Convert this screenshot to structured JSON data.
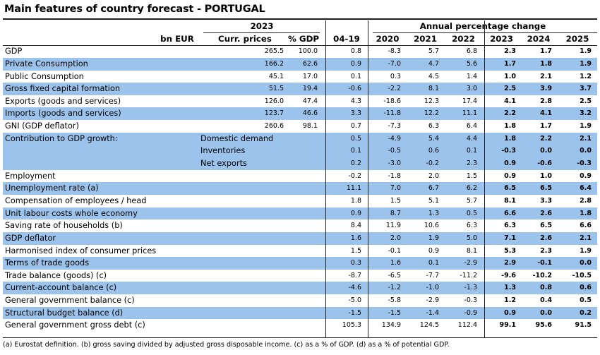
{
  "title": "Main features of country forecast - PORTUGAL",
  "header": {
    "year": "2023",
    "annual_change": "Annual percentage change",
    "columns": [
      "bn EUR",
      "Curr. prices",
      "% GDP",
      "04-19",
      "2020",
      "2021",
      "2022",
      "2023",
      "2024",
      "2025"
    ]
  },
  "rows": [
    {
      "label": "GDP",
      "values": [
        "265.5",
        "100.0",
        "0.8",
        "-8.3",
        "5.7",
        "6.8",
        "2.3",
        "1.7",
        "1.9"
      ]
    },
    {
      "label": "Private Consumption",
      "values": [
        "166.2",
        "62.6",
        "0.9",
        "-7.0",
        "4.7",
        "5.6",
        "1.7",
        "1.8",
        "1.9"
      ]
    },
    {
      "label": "Public Consumption",
      "values": [
        "45.1",
        "17.0",
        "0.1",
        "0.3",
        "4.5",
        "1.4",
        "1.0",
        "2.1",
        "1.2"
      ]
    },
    {
      "label": "Gross fixed capital formation",
      "values": [
        "51.5",
        "19.4",
        "-0.6",
        "-2.2",
        "8.1",
        "3.0",
        "2.5",
        "3.9",
        "3.7"
      ]
    },
    {
      "label": "Exports (goods and services)",
      "values": [
        "126.0",
        "47.4",
        "4.3",
        "-18.6",
        "12.3",
        "17.4",
        "4.1",
        "2.8",
        "2.5"
      ]
    },
    {
      "label": "Imports (goods and services)",
      "values": [
        "123.7",
        "46.6",
        "3.3",
        "-11.8",
        "12.2",
        "11.1",
        "2.2",
        "4.1",
        "3.2"
      ]
    },
    {
      "label": "GNI (GDP deflator)",
      "values": [
        "260.6",
        "98.1",
        "0.7",
        "-7.3",
        "6.3",
        "6.4",
        "1.8",
        "1.7",
        "1.9"
      ]
    },
    {
      "label": "Contribution to GDP growth:",
      "sub": "Domestic demand",
      "values": [
        "",
        "",
        "0.5",
        "-4.9",
        "5.4",
        "4.4",
        "1.8",
        "2.2",
        "2.1"
      ]
    },
    {
      "label": "",
      "sub": "Inventories",
      "values": [
        "",
        "",
        "0.1",
        "-0.5",
        "0.6",
        "0.1",
        "-0.3",
        "0.0",
        "0.0"
      ]
    },
    {
      "label": "",
      "sub": "Net exports",
      "values": [
        "",
        "",
        "0.2",
        "-3.0",
        "-0.2",
        "2.3",
        "0.9",
        "-0.6",
        "-0.3"
      ]
    },
    {
      "label": "Employment",
      "values": [
        "",
        "",
        "-0.2",
        "-1.8",
        "2.0",
        "1.5",
        "0.9",
        "1.0",
        "0.9"
      ]
    },
    {
      "label": "Unemployment rate (a)",
      "values": [
        "",
        "",
        "11.1",
        "7.0",
        "6.7",
        "6.2",
        "6.5",
        "6.5",
        "6.4"
      ]
    },
    {
      "label": "Compensation of employees / head",
      "values": [
        "",
        "",
        "1.8",
        "1.5",
        "5.1",
        "5.7",
        "8.1",
        "3.3",
        "2.8"
      ]
    },
    {
      "label": "Unit labour costs whole economy",
      "values": [
        "",
        "",
        "0.9",
        "8.7",
        "1.3",
        "0.5",
        "6.6",
        "2.6",
        "1.8"
      ]
    },
    {
      "label": "Saving rate of households (b)",
      "values": [
        "",
        "",
        "8.4",
        "11.9",
        "10.6",
        "6.3",
        "6.3",
        "6.5",
        "6.6"
      ]
    },
    {
      "label": "GDP deflator",
      "values": [
        "",
        "",
        "1.6",
        "2.0",
        "1.9",
        "5.0",
        "7.1",
        "2.6",
        "2.1"
      ]
    },
    {
      "label": "Harmonised index of consumer prices",
      "values": [
        "",
        "",
        "1.5",
        "-0.1",
        "0.9",
        "8.1",
        "5.3",
        "2.3",
        "1.9"
      ]
    },
    {
      "label": "Terms of trade goods",
      "values": [
        "",
        "",
        "0.3",
        "1.6",
        "0.1",
        "-2.9",
        "2.9",
        "-0.1",
        "0.0"
      ]
    },
    {
      "label": "Trade balance (goods) (c)",
      "values": [
        "",
        "",
        "-8.7",
        "-6.5",
        "-7.7",
        "-11.2",
        "-9.6",
        "-10.2",
        "-10.5"
      ]
    },
    {
      "label": "Current-account balance (c)",
      "values": [
        "",
        "",
        "-4.6",
        "-1.2",
        "-1.0",
        "-1.3",
        "1.3",
        "0.8",
        "0.6"
      ]
    },
    {
      "label": "General government balance (c)",
      "values": [
        "",
        "",
        "-5.0",
        "-5.8",
        "-2.9",
        "-0.3",
        "1.2",
        "0.4",
        "0.5"
      ]
    },
    {
      "label": "Structural budget balance (d)",
      "values": [
        "",
        "",
        "-1.5",
        "-1.5",
        "-1.4",
        "-0.9",
        "0.9",
        "0.0",
        "0.2"
      ]
    },
    {
      "label": "General government gross debt (c)",
      "values": [
        "",
        "",
        "105.3",
        "134.9",
        "124.5",
        "112.4",
        "99.1",
        "95.6",
        "91.5"
      ]
    }
  ],
  "footnote": "(a) Eurostat definition. (b) gross saving divided by adjusted gross disposable income. (c) as a % of GDP. (d) as a % of potential GDP."
}
